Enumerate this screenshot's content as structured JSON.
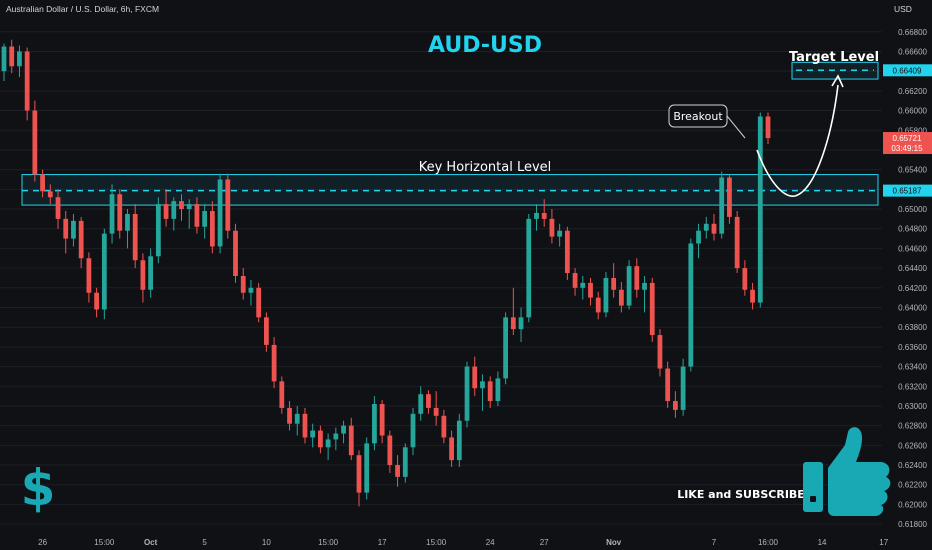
{
  "chart_data": {
    "type": "candlestick",
    "header": "Australian Dollar / U.S. Dollar, 6h, FXCM",
    "title": "AUD-USD",
    "currency": "USD",
    "y_ticks": [
      "0.66800",
      "0.66600",
      "0.66400",
      "0.66200",
      "0.66000",
      "0.65800",
      "0.65600",
      "0.65400",
      "0.65200",
      "0.65000",
      "0.64800",
      "0.64600",
      "0.64400",
      "0.64200",
      "0.64000",
      "0.63800",
      "0.63600",
      "0.63400",
      "0.63200",
      "0.63000",
      "0.62800",
      "0.62600",
      "0.62400",
      "0.62200",
      "0.62000",
      "0.61800"
    ],
    "ylim": [
      0.6172,
      0.6694
    ],
    "x_ticks": [
      {
        "label": "26",
        "i": 5
      },
      {
        "label": "15:00",
        "i": 13
      },
      {
        "label": "Oct",
        "i": 19
      },
      {
        "label": "5",
        "i": 26
      },
      {
        "label": "10",
        "i": 34
      },
      {
        "label": "15:00",
        "i": 42
      },
      {
        "label": "17",
        "i": 49
      },
      {
        "label": "15:00",
        "i": 56
      },
      {
        "label": "24",
        "i": 63
      },
      {
        "label": "27",
        "i": 70
      },
      {
        "label": "Nov",
        "i": 79
      },
      {
        "label": "7",
        "i": 92
      },
      {
        "label": "16:00",
        "i": 99
      },
      {
        "label": "14",
        "i": 106
      },
      {
        "label": "17",
        "i": 114
      }
    ],
    "colors": {
      "up": "#26a69a",
      "down": "#ef5350",
      "accent": "#22d3ee",
      "bg": "#0f1115",
      "grid": "#1c1f26",
      "axis_text": "#b2b5be"
    },
    "ohlc": [
      {
        "o": 0.664,
        "h": 0.6668,
        "l": 0.663,
        "c": 0.6665
      },
      {
        "o": 0.6665,
        "h": 0.6672,
        "l": 0.6638,
        "c": 0.6645
      },
      {
        "o": 0.6645,
        "h": 0.6666,
        "l": 0.6634,
        "c": 0.666
      },
      {
        "o": 0.666,
        "h": 0.6664,
        "l": 0.659,
        "c": 0.66
      },
      {
        "o": 0.66,
        "h": 0.661,
        "l": 0.6528,
        "c": 0.6535
      },
      {
        "o": 0.6535,
        "h": 0.654,
        "l": 0.6512,
        "c": 0.6518
      },
      {
        "o": 0.6518,
        "h": 0.6525,
        "l": 0.6505,
        "c": 0.6512
      },
      {
        "o": 0.6512,
        "h": 0.652,
        "l": 0.648,
        "c": 0.649
      },
      {
        "o": 0.649,
        "h": 0.6498,
        "l": 0.6455,
        "c": 0.647
      },
      {
        "o": 0.647,
        "h": 0.6495,
        "l": 0.6462,
        "c": 0.6488
      },
      {
        "o": 0.6488,
        "h": 0.6492,
        "l": 0.644,
        "c": 0.645
      },
      {
        "o": 0.645,
        "h": 0.6456,
        "l": 0.6405,
        "c": 0.6415
      },
      {
        "o": 0.6415,
        "h": 0.642,
        "l": 0.639,
        "c": 0.6398
      },
      {
        "o": 0.6398,
        "h": 0.648,
        "l": 0.6388,
        "c": 0.6475
      },
      {
        "o": 0.6475,
        "h": 0.6525,
        "l": 0.6465,
        "c": 0.6515
      },
      {
        "o": 0.6515,
        "h": 0.652,
        "l": 0.647,
        "c": 0.6478
      },
      {
        "o": 0.6478,
        "h": 0.65,
        "l": 0.646,
        "c": 0.6495
      },
      {
        "o": 0.6495,
        "h": 0.6505,
        "l": 0.644,
        "c": 0.6448
      },
      {
        "o": 0.6448,
        "h": 0.6455,
        "l": 0.6405,
        "c": 0.6418
      },
      {
        "o": 0.6418,
        "h": 0.646,
        "l": 0.641,
        "c": 0.6452
      },
      {
        "o": 0.6452,
        "h": 0.6512,
        "l": 0.6445,
        "c": 0.6505
      },
      {
        "o": 0.6505,
        "h": 0.652,
        "l": 0.6482,
        "c": 0.649
      },
      {
        "o": 0.649,
        "h": 0.6512,
        "l": 0.6478,
        "c": 0.6508
      },
      {
        "o": 0.6508,
        "h": 0.6515,
        "l": 0.6488,
        "c": 0.65
      },
      {
        "o": 0.65,
        "h": 0.651,
        "l": 0.648,
        "c": 0.6505
      },
      {
        "o": 0.6505,
        "h": 0.6512,
        "l": 0.6475,
        "c": 0.6482
      },
      {
        "o": 0.6482,
        "h": 0.6505,
        "l": 0.647,
        "c": 0.6498
      },
      {
        "o": 0.6498,
        "h": 0.6508,
        "l": 0.6455,
        "c": 0.6462
      },
      {
        "o": 0.6462,
        "h": 0.6536,
        "l": 0.6455,
        "c": 0.653
      },
      {
        "o": 0.653,
        "h": 0.6536,
        "l": 0.647,
        "c": 0.6478
      },
      {
        "o": 0.6478,
        "h": 0.6485,
        "l": 0.6425,
        "c": 0.6432
      },
      {
        "o": 0.6432,
        "h": 0.644,
        "l": 0.6408,
        "c": 0.6415
      },
      {
        "o": 0.6415,
        "h": 0.6428,
        "l": 0.6402,
        "c": 0.642
      },
      {
        "o": 0.642,
        "h": 0.6425,
        "l": 0.6385,
        "c": 0.639
      },
      {
        "o": 0.639,
        "h": 0.6395,
        "l": 0.6355,
        "c": 0.6362
      },
      {
        "o": 0.6362,
        "h": 0.637,
        "l": 0.6318,
        "c": 0.6325
      },
      {
        "o": 0.6325,
        "h": 0.633,
        "l": 0.6292,
        "c": 0.6298
      },
      {
        "o": 0.6298,
        "h": 0.6305,
        "l": 0.6275,
        "c": 0.6282
      },
      {
        "o": 0.6282,
        "h": 0.63,
        "l": 0.627,
        "c": 0.6292
      },
      {
        "o": 0.6292,
        "h": 0.6298,
        "l": 0.6262,
        "c": 0.6268
      },
      {
        "o": 0.6268,
        "h": 0.6282,
        "l": 0.6258,
        "c": 0.6275
      },
      {
        "o": 0.6275,
        "h": 0.628,
        "l": 0.6252,
        "c": 0.6258
      },
      {
        "o": 0.6258,
        "h": 0.6272,
        "l": 0.6245,
        "c": 0.6266
      },
      {
        "o": 0.6266,
        "h": 0.6278,
        "l": 0.6255,
        "c": 0.6272
      },
      {
        "o": 0.6272,
        "h": 0.6285,
        "l": 0.6262,
        "c": 0.628
      },
      {
        "o": 0.628,
        "h": 0.6288,
        "l": 0.6245,
        "c": 0.625
      },
      {
        "o": 0.625,
        "h": 0.6255,
        "l": 0.6198,
        "c": 0.6212
      },
      {
        "o": 0.6212,
        "h": 0.6268,
        "l": 0.6205,
        "c": 0.6262
      },
      {
        "o": 0.6262,
        "h": 0.631,
        "l": 0.6255,
        "c": 0.6302
      },
      {
        "o": 0.6302,
        "h": 0.6306,
        "l": 0.6262,
        "c": 0.627
      },
      {
        "o": 0.627,
        "h": 0.6275,
        "l": 0.6232,
        "c": 0.624
      },
      {
        "o": 0.624,
        "h": 0.625,
        "l": 0.6218,
        "c": 0.6228
      },
      {
        "o": 0.6228,
        "h": 0.6262,
        "l": 0.6222,
        "c": 0.6258
      },
      {
        "o": 0.6258,
        "h": 0.6298,
        "l": 0.625,
        "c": 0.6292
      },
      {
        "o": 0.6292,
        "h": 0.632,
        "l": 0.6285,
        "c": 0.6312
      },
      {
        "o": 0.6312,
        "h": 0.6316,
        "l": 0.6292,
        "c": 0.6298
      },
      {
        "o": 0.6298,
        "h": 0.6315,
        "l": 0.628,
        "c": 0.629
      },
      {
        "o": 0.629,
        "h": 0.6296,
        "l": 0.6262,
        "c": 0.6268
      },
      {
        "o": 0.6268,
        "h": 0.6275,
        "l": 0.6238,
        "c": 0.6245
      },
      {
        "o": 0.6245,
        "h": 0.6292,
        "l": 0.6238,
        "c": 0.6285
      },
      {
        "o": 0.6285,
        "h": 0.6345,
        "l": 0.6278,
        "c": 0.634
      },
      {
        "o": 0.634,
        "h": 0.635,
        "l": 0.631,
        "c": 0.6318
      },
      {
        "o": 0.6318,
        "h": 0.6332,
        "l": 0.6295,
        "c": 0.6325
      },
      {
        "o": 0.6325,
        "h": 0.633,
        "l": 0.6298,
        "c": 0.6305
      },
      {
        "o": 0.6305,
        "h": 0.6335,
        "l": 0.63,
        "c": 0.6328
      },
      {
        "o": 0.6328,
        "h": 0.6395,
        "l": 0.6322,
        "c": 0.639
      },
      {
        "o": 0.639,
        "h": 0.642,
        "l": 0.6372,
        "c": 0.6378
      },
      {
        "o": 0.6378,
        "h": 0.64,
        "l": 0.6365,
        "c": 0.639
      },
      {
        "o": 0.639,
        "h": 0.6495,
        "l": 0.6385,
        "c": 0.649
      },
      {
        "o": 0.649,
        "h": 0.6505,
        "l": 0.6478,
        "c": 0.6496
      },
      {
        "o": 0.6496,
        "h": 0.651,
        "l": 0.6482,
        "c": 0.649
      },
      {
        "o": 0.649,
        "h": 0.65,
        "l": 0.6465,
        "c": 0.6472
      },
      {
        "o": 0.6472,
        "h": 0.6485,
        "l": 0.6462,
        "c": 0.6478
      },
      {
        "o": 0.6478,
        "h": 0.6482,
        "l": 0.6428,
        "c": 0.6435
      },
      {
        "o": 0.6435,
        "h": 0.644,
        "l": 0.6412,
        "c": 0.642
      },
      {
        "o": 0.642,
        "h": 0.6432,
        "l": 0.6408,
        "c": 0.6425
      },
      {
        "o": 0.6425,
        "h": 0.643,
        "l": 0.6402,
        "c": 0.641
      },
      {
        "o": 0.641,
        "h": 0.6416,
        "l": 0.6388,
        "c": 0.6395
      },
      {
        "o": 0.6395,
        "h": 0.6436,
        "l": 0.639,
        "c": 0.643
      },
      {
        "o": 0.643,
        "h": 0.6445,
        "l": 0.641,
        "c": 0.6418
      },
      {
        "o": 0.6418,
        "h": 0.6426,
        "l": 0.6395,
        "c": 0.6402
      },
      {
        "o": 0.6402,
        "h": 0.6448,
        "l": 0.6398,
        "c": 0.6442
      },
      {
        "o": 0.6442,
        "h": 0.645,
        "l": 0.641,
        "c": 0.6418
      },
      {
        "o": 0.6418,
        "h": 0.6432,
        "l": 0.6395,
        "c": 0.6425
      },
      {
        "o": 0.6425,
        "h": 0.643,
        "l": 0.6365,
        "c": 0.6372
      },
      {
        "o": 0.6372,
        "h": 0.6378,
        "l": 0.633,
        "c": 0.6338
      },
      {
        "o": 0.6338,
        "h": 0.6345,
        "l": 0.6298,
        "c": 0.6305
      },
      {
        "o": 0.6305,
        "h": 0.6315,
        "l": 0.6288,
        "c": 0.6296
      },
      {
        "o": 0.6296,
        "h": 0.6348,
        "l": 0.629,
        "c": 0.634
      },
      {
        "o": 0.634,
        "h": 0.647,
        "l": 0.6335,
        "c": 0.6465
      },
      {
        "o": 0.6465,
        "h": 0.6485,
        "l": 0.645,
        "c": 0.6478
      },
      {
        "o": 0.6478,
        "h": 0.6492,
        "l": 0.647,
        "c": 0.6485
      },
      {
        "o": 0.6485,
        "h": 0.6495,
        "l": 0.6468,
        "c": 0.6475
      },
      {
        "o": 0.6475,
        "h": 0.6538,
        "l": 0.647,
        "c": 0.6532
      },
      {
        "o": 0.6532,
        "h": 0.6535,
        "l": 0.6485,
        "c": 0.6492
      },
      {
        "o": 0.6492,
        "h": 0.6498,
        "l": 0.6435,
        "c": 0.644
      },
      {
        "o": 0.644,
        "h": 0.6448,
        "l": 0.6412,
        "c": 0.6418
      },
      {
        "o": 0.6418,
        "h": 0.6425,
        "l": 0.6398,
        "c": 0.6405
      },
      {
        "o": 0.6405,
        "h": 0.6598,
        "l": 0.64,
        "c": 0.6594
      },
      {
        "o": 0.6594,
        "h": 0.6598,
        "l": 0.6566,
        "c": 0.6572
      }
    ],
    "key_level": {
      "label": "Key Horizontal Level",
      "price": 0.65187,
      "price_label": "0.65187",
      "zone": [
        0.6504,
        0.6535
      ]
    },
    "target_level": {
      "label": "Target Level",
      "price": 0.66409,
      "price_label": "0.66409",
      "zone": [
        0.6632,
        0.6649
      ]
    },
    "last_price": {
      "price": 0.65721,
      "price_label": "0.65721",
      "countdown": "03:49:15"
    },
    "breakout_label": "Breakout",
    "cta": "LIKE and SUBSCRIBE",
    "dollar_glyph": "$"
  }
}
